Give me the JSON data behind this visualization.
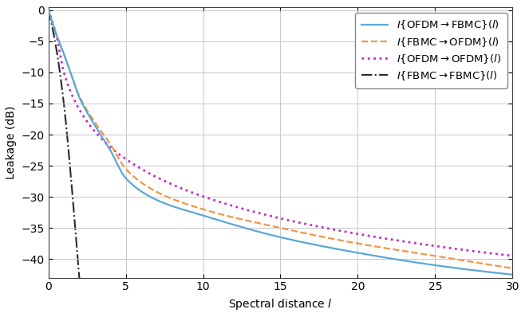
{
  "xlim": [
    0,
    30
  ],
  "ylim": [
    -43,
    0.5
  ],
  "yticks": [
    0,
    -5,
    -10,
    -15,
    -20,
    -25,
    -30,
    -35,
    -40
  ],
  "xticks": [
    0,
    5,
    10,
    15,
    20,
    25,
    30
  ],
  "xlabel": "Spectral distance $l$",
  "ylabel": "Leakage (dB)",
  "bg_color": "#ffffff",
  "grid_color": "#c8c8c8",
  "lines": [
    {
      "label": "$I\\{\\mathrm{OFDM} \\rightarrow \\mathrm{FBMC}\\}(l)$",
      "color": "#5aa8d8",
      "linestyle": "solid",
      "linewidth": 1.6,
      "type": "ofdm_fbmc"
    },
    {
      "label": "$I\\{\\mathrm{FBMC} \\rightarrow \\mathrm{OFDM}\\}(l)$",
      "color": "#f0964a",
      "linestyle": "dashed",
      "linewidth": 1.6,
      "type": "fbmc_ofdm"
    },
    {
      "label": "$I\\{\\mathrm{OFDM} \\rightarrow \\mathrm{OFDM}\\}(l)$",
      "color": "#c030c0",
      "linestyle": "dotted",
      "linewidth": 2.0,
      "type": "ofdm_ofdm"
    },
    {
      "label": "$I\\{\\mathrm{FBMC} \\rightarrow \\mathrm{FBMC}\\}(l)$",
      "color": "#2a2a2a",
      "linestyle": "dashdot",
      "linewidth": 1.5,
      "type": "fbmc_fbmc"
    }
  ],
  "legend_loc": "upper right",
  "axis_fontsize": 10,
  "tick_fontsize": 10,
  "legend_fontsize": 9.5
}
